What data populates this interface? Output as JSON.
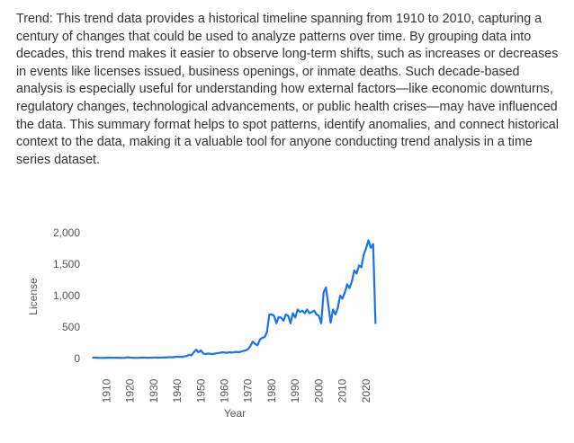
{
  "text": "Trend: This trend data provides a historical timeline spanning from 1910 to 2010, capturing a century of changes that could be used to analyze patterns over time. By grouping data into decades, this trend makes it easier to observe long-term shifts, such as increases or decreases in events like licenses issued, business openings, or inmate deaths. Such decade-based analysis is especially useful for understanding how external factors—like economic downturns, regulatory changes, technological advancements, or public health crises—may have influenced the data. This summary format helps to spot patterns, identify anomalies, and connect historical context to the data, making it a valuable tool for anyone conducting trend analysis in a time series dataset.",
  "chart_data": {
    "type": "line",
    "x_label": "Year",
    "y_label": "License",
    "color": "#1a73e8",
    "grid": false,
    "x": [
      1904,
      1905,
      1906,
      1907,
      1908,
      1909,
      1910,
      1911,
      1912,
      1913,
      1914,
      1915,
      1916,
      1917,
      1918,
      1919,
      1920,
      1921,
      1922,
      1923,
      1924,
      1925,
      1926,
      1927,
      1928,
      1929,
      1930,
      1931,
      1932,
      1933,
      1934,
      1935,
      1936,
      1937,
      1938,
      1939,
      1940,
      1941,
      1942,
      1943,
      1944,
      1945,
      1946,
      1947,
      1948,
      1949,
      1950,
      1951,
      1952,
      1953,
      1954,
      1955,
      1956,
      1957,
      1958,
      1959,
      1960,
      1961,
      1962,
      1963,
      1964,
      1965,
      1966,
      1967,
      1968,
      1969,
      1970,
      1971,
      1972,
      1973,
      1974,
      1975,
      1976,
      1977,
      1978,
      1979,
      1980,
      1981,
      1982,
      1983,
      1984,
      1985,
      1986,
      1987,
      1988,
      1989,
      1990,
      1991,
      1992,
      1993,
      1994,
      1995,
      1996,
      1997,
      1998,
      1999,
      2000,
      2001,
      2002,
      2003,
      2004,
      2005,
      2006,
      2007,
      2008,
      2009,
      2010,
      2011,
      2012,
      2013,
      2014,
      2015,
      2016,
      2017,
      2018,
      2019,
      2020,
      2021,
      2022,
      2023,
      2024
    ],
    "values": [
      15,
      14,
      12,
      10,
      10,
      11,
      12,
      14,
      13,
      12,
      13,
      12,
      11,
      10,
      12,
      20,
      15,
      12,
      11,
      10,
      12,
      14,
      15,
      13,
      12,
      14,
      15,
      16,
      14,
      15,
      16,
      18,
      20,
      22,
      20,
      25,
      30,
      28,
      25,
      35,
      40,
      60,
      50,
      100,
      140,
      100,
      130,
      80,
      70,
      80,
      75,
      70,
      80,
      85,
      90,
      100,
      95,
      90,
      100,
      95,
      100,
      105,
      100,
      110,
      120,
      130,
      150,
      200,
      270,
      230,
      210,
      300,
      330,
      340,
      420,
      700,
      700,
      680,
      560,
      660,
      650,
      600,
      700,
      680,
      560,
      720,
      650,
      780,
      740,
      760,
      720,
      780,
      720,
      740,
      760,
      700,
      680,
      560,
      1050,
      1130,
      850,
      570,
      780,
      700,
      800,
      1000,
      950,
      1050,
      1180,
      1120,
      1230,
      1400,
      1350,
      1480,
      1450,
      1650,
      1750,
      1880,
      1760,
      1820,
      550
    ],
    "xlim": [
      1903,
      2025
    ],
    "xticks": [
      1910,
      1920,
      1930,
      1940,
      1950,
      1960,
      1970,
      1980,
      1990,
      2000,
      2010,
      2020
    ],
    "ylim": [
      0,
      2000
    ],
    "yticks": [
      0,
      500,
      {
        "value": 1000,
        "label": "1,000"
      },
      {
        "value": 1500,
        "label": "1,500"
      },
      {
        "value": 2000,
        "label": "2,000"
      }
    ]
  }
}
